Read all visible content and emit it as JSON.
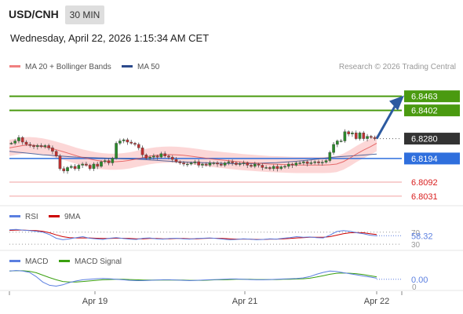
{
  "header": {
    "pair": "USD/CNH",
    "timeframe": "30 MIN",
    "timestamp": "Wednesday, April 22, 2026 1:15:34 AM CET"
  },
  "legend": {
    "ma20_bb": "MA 20 + Bollinger Bands",
    "ma50": "MA 50",
    "credit": "Research © 2026 Trading Central",
    "rsi": "RSI",
    "rsi_ma": "9MA",
    "macd": "MACD",
    "macd_signal": "MACD Signal"
  },
  "colors": {
    "resistance": "#4a9a10",
    "current": "#333333",
    "pivot": "#2f6fdd",
    "support": "#d92020",
    "bollinger_fill": "#fbd0d0",
    "ma20": "#e05050",
    "ma50": "#2c4a8c",
    "rsi": "#5b7fe0",
    "rsi_ma": "#cc0000",
    "macd": "#5b7fe0",
    "macd_signal": "#3aa010",
    "arrow": "#2c5aa0"
  },
  "chart_data": {
    "type": "candlestick",
    "x_ticks": [
      "Apr 19",
      "Apr 21",
      "Apr 22"
    ],
    "price_levels": [
      {
        "label": "6.8463",
        "value": 6.8463,
        "kind": "resistance"
      },
      {
        "label": "6.8402",
        "value": 6.8402,
        "kind": "resistance"
      },
      {
        "label": "6.8280",
        "value": 6.828,
        "kind": "current"
      },
      {
        "label": "6.8194",
        "value": 6.8194,
        "kind": "pivot"
      },
      {
        "label": "6.8092",
        "value": 6.8092,
        "kind": "support"
      },
      {
        "label": "6.8031",
        "value": 6.8031,
        "kind": "support"
      }
    ],
    "price_range": [
      6.799,
      6.854
    ],
    "close": [
      6.826,
      6.827,
      6.8285,
      6.8265,
      6.8255,
      6.825,
      6.8245,
      6.825,
      6.8245,
      6.825,
      6.824,
      6.8225,
      6.8205,
      6.815,
      6.814,
      6.8155,
      6.816,
      6.815,
      6.8165,
      6.817,
      6.8165,
      6.815,
      6.817,
      6.816,
      6.818,
      6.8185,
      6.8175,
      6.8195,
      6.826,
      6.827,
      6.8275,
      6.8265,
      6.826,
      6.8255,
      6.824,
      6.821,
      6.8195,
      6.82,
      6.8205,
      6.82,
      6.8215,
      6.8205,
      6.82,
      6.819,
      6.818,
      6.8175,
      6.817,
      6.817,
      6.8175,
      6.818,
      6.8165,
      6.817,
      6.8165,
      6.8175,
      6.8175,
      6.817,
      6.8165,
      6.8175,
      6.818,
      6.8175,
      6.8168,
      6.8172,
      6.8175,
      6.8165,
      6.816,
      6.817,
      6.8165,
      6.8155,
      6.8155,
      6.815,
      6.816,
      6.815,
      6.8158,
      6.816,
      6.817,
      6.8165,
      6.8175,
      6.8175,
      6.818,
      6.8172,
      6.8176,
      6.818,
      6.8175,
      6.8178,
      6.8185,
      6.822,
      6.8255,
      6.827,
      6.827,
      6.831,
      6.83,
      6.8305,
      6.828,
      6.8305,
      6.828,
      6.829,
      6.8285,
      6.828
    ],
    "ma20": [
      6.824,
      6.8245,
      6.825,
      6.8252,
      6.825,
      6.8246,
      6.824,
      6.8232,
      6.8224,
      6.8215,
      6.8206,
      6.8198,
      6.8192,
      6.8186,
      6.8182,
      6.818,
      6.818,
      6.8182,
      6.8186,
      6.8192,
      6.8198,
      6.8204,
      6.8208,
      6.821,
      6.8211,
      6.821,
      6.8208,
      6.8205,
      6.8201,
      6.8197,
      6.8193,
      6.819,
      6.8187,
      6.8184,
      6.8181,
      6.8178,
      6.8176,
      6.8174,
      6.8172,
      6.817,
      6.8169,
      6.8168,
      6.8167,
      6.8166,
      6.8166,
      6.8166,
      6.8166,
      6.8166,
      6.8167,
      6.817,
      6.818,
      6.8196,
      6.8214,
      6.823,
      6.8244,
      6.826
    ],
    "ma50": [
      6.8225,
      6.8222,
      6.8219,
      6.8216,
      6.8213,
      6.821,
      6.8208,
      6.8206,
      6.8204,
      6.8202,
      6.82,
      6.8199,
      6.8198,
      6.8197,
      6.8196,
      6.8195,
      6.8194,
      6.8193,
      6.8192,
      6.8191,
      6.819,
      6.8188,
      6.8186,
      6.8184,
      6.8182,
      6.818,
      6.8179,
      6.8178,
      6.8177,
      6.8176,
      6.8175,
      6.8174,
      6.8173,
      6.8172,
      6.8172,
      6.8172,
      6.8172,
      6.8173,
      6.8174,
      6.8175,
      6.8176,
      6.8178,
      6.818,
      6.8182,
      6.8185,
      6.8188,
      6.8191,
      6.8195,
      6.8198,
      6.8201,
      6.8203,
      6.8205,
      6.8207,
      6.8209,
      6.8211,
      6.8213
    ],
    "rsi": {
      "value_label": "58.32",
      "value": 58.32,
      "range": [
        30,
        70
      ],
      "tick_labels": [
        "70",
        "30"
      ],
      "rsi_values": [
        78,
        79,
        77,
        75,
        73,
        70,
        62,
        50,
        45,
        48,
        52,
        55,
        50,
        48,
        46,
        50,
        52,
        49,
        47,
        46,
        50,
        51,
        48,
        47,
        49,
        50,
        48,
        47,
        49,
        50,
        51,
        49,
        47,
        45,
        46,
        48,
        47,
        45,
        46,
        48,
        47,
        50,
        52,
        55,
        53,
        54,
        52,
        51,
        60,
        72,
        75,
        73,
        68,
        65,
        60,
        58
      ],
      "ma_values": [
        76,
        77,
        77,
        76,
        75,
        73,
        68,
        61,
        55,
        52,
        51,
        51,
        51,
        50,
        49,
        49,
        50,
        50,
        49,
        48,
        48,
        49,
        49,
        48,
        48,
        49,
        49,
        48,
        48,
        49,
        50,
        50,
        49,
        48,
        47,
        47,
        47,
        46,
        46,
        47,
        47,
        48,
        49,
        51,
        52,
        53,
        53,
        53,
        55,
        60,
        65,
        68,
        69,
        68,
        65,
        62
      ]
    },
    "macd": {
      "value_label": "0.00",
      "value": 0.0,
      "zero_label": "0",
      "macd_values": [
        0.003,
        0.0032,
        0.003,
        0.0025,
        0.001,
        -0.001,
        -0.0022,
        -0.0025,
        -0.002,
        -0.0012,
        -0.0006,
        -0.0002,
        0.0,
        0.0002,
        0.0003,
        0.0002,
        0.0,
        -0.0002,
        -0.0004,
        -0.0005,
        -0.0005,
        -0.0004,
        -0.0003,
        -0.0002,
        -0.0002,
        -0.0003,
        -0.0004,
        -0.0005,
        -0.0004,
        -0.0003,
        -0.0002,
        -0.0001,
        0.0,
        0.0001,
        0.0001,
        0.0,
        -0.0001,
        -0.0002,
        -0.0002,
        -0.0001,
        0.0,
        0.0001,
        0.0002,
        0.0003,
        0.0005,
        0.001,
        0.0018,
        0.0025,
        0.003,
        0.0028,
        0.0024,
        0.002,
        0.0016,
        0.0012,
        0.0008,
        0.0004
      ],
      "signal_values": [
        0.003,
        0.0031,
        0.0031,
        0.0029,
        0.0024,
        0.0015,
        0.0006,
        -0.0002,
        -0.0008,
        -0.001,
        -0.001,
        -0.0008,
        -0.0006,
        -0.0004,
        -0.0002,
        -0.0001,
        0.0,
        0.0,
        -0.0001,
        -0.0002,
        -0.0003,
        -0.0003,
        -0.0003,
        -0.0003,
        -0.0003,
        -0.0003,
        -0.0003,
        -0.0004,
        -0.0004,
        -0.0004,
        -0.0003,
        -0.0002,
        -0.0002,
        -0.0001,
        0.0,
        0.0,
        0.0,
        -0.0001,
        -0.0001,
        -0.0001,
        -0.0001,
        0.0,
        0.0,
        0.0001,
        0.0002,
        0.0004,
        0.0008,
        0.0013,
        0.0018,
        0.0022,
        0.0023,
        0.0022,
        0.002,
        0.0017,
        0.0013,
        0.0009
      ]
    }
  }
}
